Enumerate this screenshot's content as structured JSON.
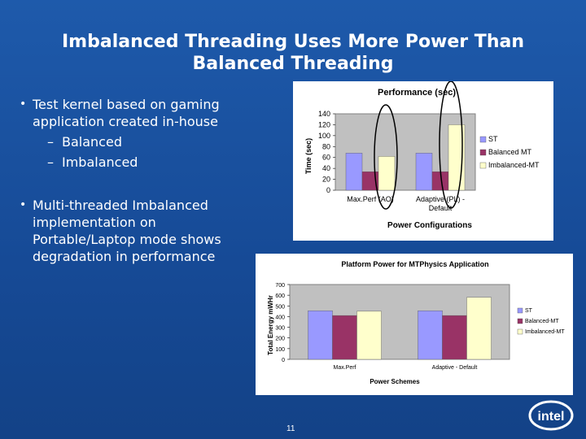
{
  "slide": {
    "title": "Imbalanced Threading Uses More Power Than Balanced Threading",
    "title_line1": "Imbalanced Threading Uses More Power Than",
    "title_line2": "Balanced Threading",
    "page_number": "11",
    "logo_text": "intel",
    "bullets": [
      {
        "text": "Test kernel based on gaming application created in-house",
        "lines": [
          "Test kernel based on gaming",
          "application created in-house"
        ],
        "subitems": [
          "Balanced",
          "Imbalanced"
        ]
      },
      {
        "text": "Multi-threaded Imbalanced implementation on Portable/Laptop mode shows degradation in performance",
        "lines": [
          "Multi-threaded Imbalanced",
          "implementation on",
          "Portable/Laptop mode shows",
          "degradation in performance"
        ]
      }
    ]
  },
  "chart_data": [
    {
      "type": "bar",
      "title": "Performance (sec)",
      "ylabel": "Time (sec)",
      "xlabel": "Power Configurations",
      "categories": [
        "Max.Perf (AO)",
        "Adaptive (PL) - Default"
      ],
      "category_lines": [
        [
          "Max.Perf (AO)"
        ],
        [
          "Adaptive (PL) -",
          "Default"
        ]
      ],
      "series": [
        {
          "name": "ST",
          "values": [
            68,
            68
          ],
          "color": "#9999ff"
        },
        {
          "name": "Balanced MT",
          "values": [
            34,
            34
          ],
          "color": "#993366"
        },
        {
          "name": "Imbalanced-MT",
          "values": [
            62,
            120
          ],
          "color": "#ffffcc"
        }
      ],
      "yticks": [
        "0",
        "20",
        "40",
        "60",
        "80",
        "100",
        "120",
        "140"
      ],
      "ylim": [
        0,
        140
      ],
      "legend": "right",
      "annotations": "ellipses around Imbalanced-MT bars"
    },
    {
      "type": "bar",
      "title": "Platform Power for MTPhysics Application",
      "ylabel": "Total Energy mWHr",
      "xlabel": "Power Schemes",
      "categories": [
        "Max.Perf",
        "Adaptive - Default"
      ],
      "series": [
        {
          "name": "ST",
          "values": [
            455,
            455
          ],
          "color": "#9999ff"
        },
        {
          "name": "Balanced-MT",
          "values": [
            410,
            410
          ],
          "color": "#993366"
        },
        {
          "name": "Imbalanced-MT",
          "values": [
            450,
            580
          ],
          "color": "#ffffcc"
        }
      ],
      "yticks": [
        "0",
        "100",
        "200",
        "300",
        "400",
        "500",
        "600",
        "700"
      ],
      "ylim": [
        0,
        700
      ],
      "legend": "right"
    }
  ]
}
